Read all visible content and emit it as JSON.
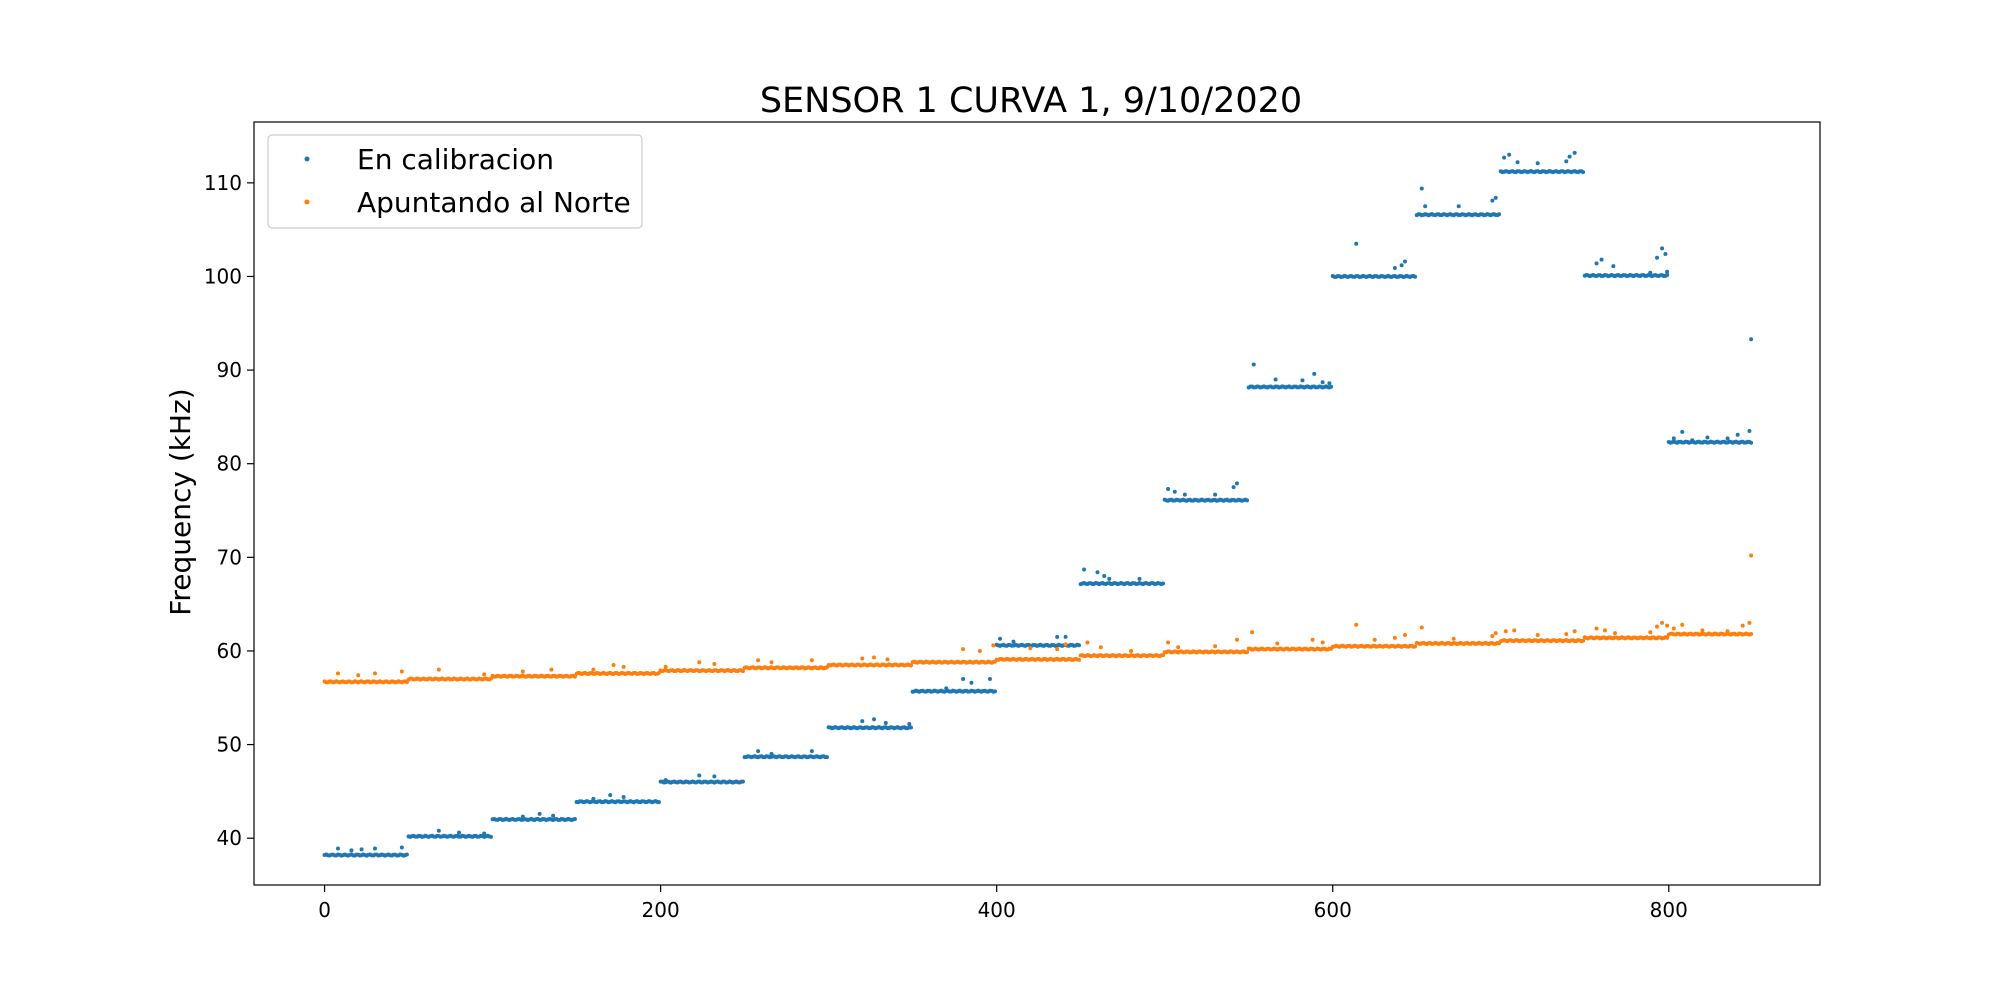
{
  "chart_data": {
    "type": "scatter",
    "title": "SENSOR 1 CURVA 1, 9/10/2020",
    "xlabel": "",
    "ylabel": "Frequency (kHz)",
    "xlim": [
      -42,
      890
    ],
    "ylim": [
      35,
      116.5
    ],
    "xticks": [
      0,
      200,
      400,
      600,
      800
    ],
    "yticks": [
      40,
      50,
      60,
      70,
      80,
      90,
      100,
      110
    ],
    "grid": false,
    "legend_position": "upper-left",
    "series": [
      {
        "name": "En calibracion",
        "color": "#1f77b4",
        "segments": [
          {
            "x_start": 0,
            "x_end": 49,
            "y": 38.2
          },
          {
            "x_start": 50,
            "x_end": 99,
            "y": 40.2
          },
          {
            "x_start": 100,
            "x_end": 149,
            "y": 42.0
          },
          {
            "x_start": 150,
            "x_end": 199,
            "y": 43.9
          },
          {
            "x_start": 200,
            "x_end": 249,
            "y": 46.0
          },
          {
            "x_start": 250,
            "x_end": 299,
            "y": 48.7
          },
          {
            "x_start": 300,
            "x_end": 349,
            "y": 51.8
          },
          {
            "x_start": 350,
            "x_end": 399,
            "y": 55.7
          },
          {
            "x_start": 400,
            "x_end": 449,
            "y": 60.6
          },
          {
            "x_start": 450,
            "x_end": 499,
            "y": 67.2
          },
          {
            "x_start": 500,
            "x_end": 549,
            "y": 76.1
          },
          {
            "x_start": 550,
            "x_end": 599,
            "y": 88.2
          },
          {
            "x_start": 600,
            "x_end": 649,
            "y": 100.0
          },
          {
            "x_start": 650,
            "x_end": 699,
            "y": 106.6
          },
          {
            "x_start": 700,
            "x_end": 749,
            "y": 111.2
          },
          {
            "x_start": 750,
            "x_end": 799,
            "y": 100.1
          },
          {
            "x_start": 800,
            "x_end": 849,
            "y": 82.3
          }
        ],
        "outliers": [
          [
            8,
            38.9
          ],
          [
            16,
            38.7
          ],
          [
            22,
            38.8
          ],
          [
            30,
            38.9
          ],
          [
            46,
            39.0
          ],
          [
            68,
            40.8
          ],
          [
            80,
            40.6
          ],
          [
            95,
            40.5
          ],
          [
            118,
            42.3
          ],
          [
            128,
            42.6
          ],
          [
            136,
            42.4
          ],
          [
            160,
            44.2
          ],
          [
            170,
            44.6
          ],
          [
            178,
            44.4
          ],
          [
            203,
            46.2
          ],
          [
            223,
            46.7
          ],
          [
            232,
            46.6
          ],
          [
            258,
            49.3
          ],
          [
            266,
            49.0
          ],
          [
            290,
            49.3
          ],
          [
            320,
            52.5
          ],
          [
            327,
            52.7
          ],
          [
            334,
            52.3
          ],
          [
            348,
            52.2
          ],
          [
            370,
            56.0
          ],
          [
            380,
            57.0
          ],
          [
            385,
            56.6
          ],
          [
            396,
            57.0
          ],
          [
            402,
            61.3
          ],
          [
            410,
            61.0
          ],
          [
            436,
            61.5
          ],
          [
            441,
            61.5
          ],
          [
            452,
            68.7
          ],
          [
            460,
            68.4
          ],
          [
            464,
            68.0
          ],
          [
            467,
            67.7
          ],
          [
            485,
            67.7
          ],
          [
            502,
            77.3
          ],
          [
            506,
            77.0
          ],
          [
            512,
            76.7
          ],
          [
            530,
            76.7
          ],
          [
            541,
            77.5
          ],
          [
            543,
            77.9
          ],
          [
            553,
            90.6
          ],
          [
            566,
            89.0
          ],
          [
            582,
            88.9
          ],
          [
            589,
            89.6
          ],
          [
            594,
            88.7
          ],
          [
            598,
            88.6
          ],
          [
            614,
            103.5
          ],
          [
            637,
            100.9
          ],
          [
            641,
            101.2
          ],
          [
            643,
            101.6
          ],
          [
            653,
            109.4
          ],
          [
            655,
            107.5
          ],
          [
            675,
            107.5
          ],
          [
            695,
            108.1
          ],
          [
            697,
            108.4
          ],
          [
            702,
            112.7
          ],
          [
            705,
            113.0
          ],
          [
            710,
            112.2
          ],
          [
            722,
            112.1
          ],
          [
            739,
            112.3
          ],
          [
            741,
            112.8
          ],
          [
            744,
            113.2
          ],
          [
            757,
            101.4
          ],
          [
            760,
            101.8
          ],
          [
            767,
            101.1
          ],
          [
            789,
            100.4
          ],
          [
            793,
            102.0
          ],
          [
            796,
            103.0
          ],
          [
            798,
            102.4
          ],
          [
            799,
            100.5
          ],
          [
            803,
            82.7
          ],
          [
            808,
            83.4
          ],
          [
            814,
            82.5
          ],
          [
            823,
            82.8
          ],
          [
            835,
            82.7
          ],
          [
            841,
            83.1
          ],
          [
            848,
            83.5
          ],
          [
            849,
            93.3
          ]
        ]
      },
      {
        "name": "Apuntando al Norte",
        "color": "#ff7f0e",
        "segments": [
          {
            "x_start": 0,
            "x_end": 49,
            "y": 56.7
          },
          {
            "x_start": 50,
            "x_end": 99,
            "y": 57.0
          },
          {
            "x_start": 100,
            "x_end": 149,
            "y": 57.3
          },
          {
            "x_start": 150,
            "x_end": 199,
            "y": 57.6
          },
          {
            "x_start": 200,
            "x_end": 249,
            "y": 57.9
          },
          {
            "x_start": 250,
            "x_end": 299,
            "y": 58.2
          },
          {
            "x_start": 300,
            "x_end": 349,
            "y": 58.5
          },
          {
            "x_start": 350,
            "x_end": 399,
            "y": 58.8
          },
          {
            "x_start": 400,
            "x_end": 449,
            "y": 59.1
          },
          {
            "x_start": 450,
            "x_end": 499,
            "y": 59.5
          },
          {
            "x_start": 500,
            "x_end": 549,
            "y": 59.9
          },
          {
            "x_start": 550,
            "x_end": 599,
            "y": 60.2
          },
          {
            "x_start": 600,
            "x_end": 649,
            "y": 60.5
          },
          {
            "x_start": 650,
            "x_end": 699,
            "y": 60.8
          },
          {
            "x_start": 700,
            "x_end": 749,
            "y": 61.1
          },
          {
            "x_start": 750,
            "x_end": 799,
            "y": 61.4
          },
          {
            "x_start": 800,
            "x_end": 849,
            "y": 61.8
          }
        ],
        "outliers": [
          [
            8,
            57.6
          ],
          [
            20,
            57.4
          ],
          [
            30,
            57.6
          ],
          [
            46,
            57.8
          ],
          [
            68,
            58.0
          ],
          [
            95,
            57.5
          ],
          [
            118,
            57.8
          ],
          [
            135,
            58.0
          ],
          [
            160,
            58.0
          ],
          [
            172,
            58.5
          ],
          [
            178,
            58.3
          ],
          [
            203,
            58.3
          ],
          [
            223,
            58.8
          ],
          [
            232,
            58.6
          ],
          [
            258,
            59.0
          ],
          [
            266,
            58.8
          ],
          [
            290,
            59.0
          ],
          [
            320,
            59.2
          ],
          [
            327,
            59.3
          ],
          [
            335,
            59.1
          ],
          [
            380,
            60.2
          ],
          [
            390,
            60.0
          ],
          [
            398,
            60.6
          ],
          [
            420,
            60.3
          ],
          [
            436,
            60.2
          ],
          [
            441,
            60.7
          ],
          [
            454,
            60.9
          ],
          [
            462,
            60.4
          ],
          [
            480,
            60.0
          ],
          [
            502,
            60.9
          ],
          [
            508,
            60.4
          ],
          [
            530,
            60.5
          ],
          [
            543,
            61.2
          ],
          [
            552,
            62.0
          ],
          [
            567,
            60.8
          ],
          [
            588,
            61.2
          ],
          [
            594,
            60.9
          ],
          [
            614,
            62.8
          ],
          [
            625,
            61.2
          ],
          [
            637,
            61.4
          ],
          [
            643,
            61.7
          ],
          [
            653,
            62.5
          ],
          [
            672,
            61.3
          ],
          [
            695,
            61.6
          ],
          [
            697,
            61.9
          ],
          [
            703,
            62.1
          ],
          [
            708,
            62.2
          ],
          [
            722,
            61.7
          ],
          [
            739,
            61.8
          ],
          [
            744,
            62.1
          ],
          [
            757,
            62.4
          ],
          [
            762,
            62.2
          ],
          [
            768,
            61.9
          ],
          [
            789,
            62.0
          ],
          [
            793,
            62.6
          ],
          [
            796,
            63.0
          ],
          [
            799,
            62.7
          ],
          [
            803,
            62.4
          ],
          [
            808,
            62.8
          ],
          [
            820,
            62.2
          ],
          [
            835,
            62.1
          ],
          [
            844,
            62.7
          ],
          [
            848,
            63.0
          ],
          [
            849,
            70.2
          ]
        ]
      }
    ]
  }
}
